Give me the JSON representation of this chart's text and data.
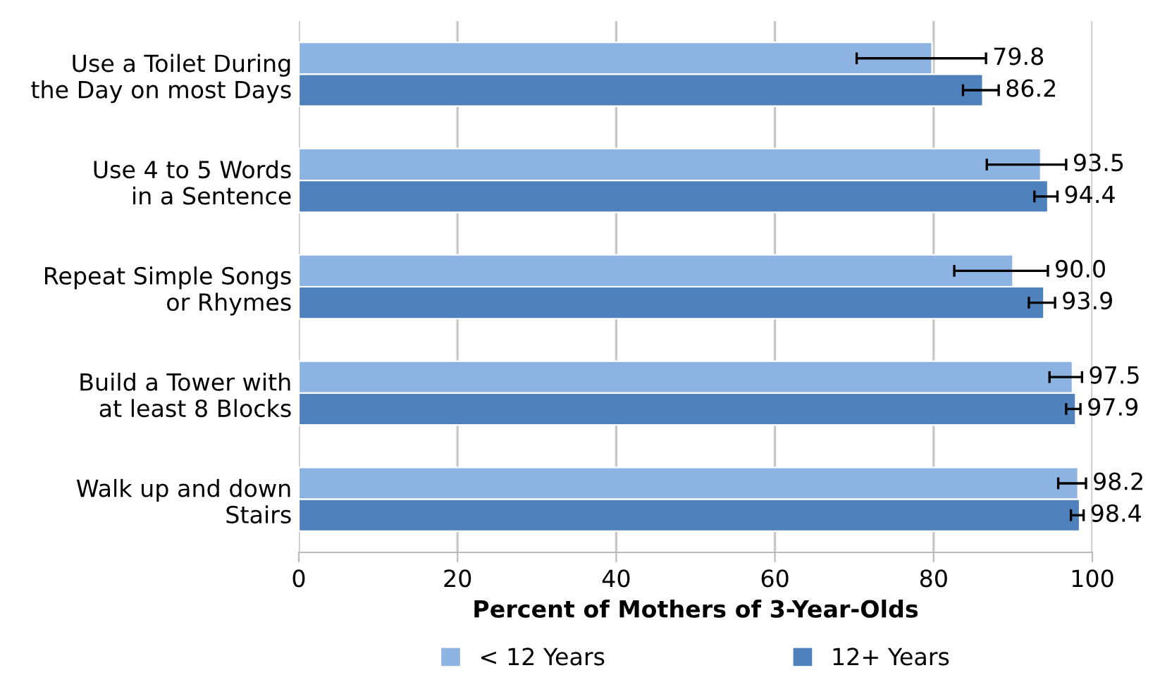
{
  "chart_data": {
    "type": "bar",
    "orientation": "horizontal",
    "xlabel": "Percent of Mothers of 3-Year-Olds",
    "categories": [
      "Use a Toilet During\nthe Day on most Days",
      "Use 4 to 5 Words\nin a Sentence",
      "Repeat Simple Songs\nor Rhymes",
      "Build a Tower with\nat least 8 Blocks",
      "Walk up and down\nStairs"
    ],
    "series": [
      {
        "name": "< 12 Years",
        "color": "#8db3e2",
        "values": [
          79.8,
          93.5,
          90.0,
          97.5,
          98.2
        ],
        "value_labels": [
          "79.8",
          "93.5",
          "90.0",
          "97.5",
          "98.2"
        ],
        "errors": [
          [
            70.3,
            86.6
          ],
          [
            86.7,
            96.7
          ],
          [
            82.6,
            94.4
          ],
          [
            94.6,
            98.7
          ],
          [
            95.7,
            99.2
          ]
        ]
      },
      {
        "name": "12+ Years",
        "color": "#4f81bd",
        "values": [
          86.2,
          94.4,
          93.9,
          97.9,
          98.4
        ],
        "value_labels": [
          "86.2",
          "94.4",
          "93.9",
          "97.9",
          "98.4"
        ],
        "errors": [
          [
            83.7,
            88.2
          ],
          [
            92.7,
            95.6
          ],
          [
            92.0,
            95.3
          ],
          [
            96.7,
            98.5
          ],
          [
            97.3,
            98.9
          ]
        ]
      }
    ],
    "xlim": [
      0,
      100
    ],
    "xticks": [
      0,
      20,
      40,
      60,
      80,
      100
    ],
    "grid": "x",
    "legend": "bottom"
  }
}
